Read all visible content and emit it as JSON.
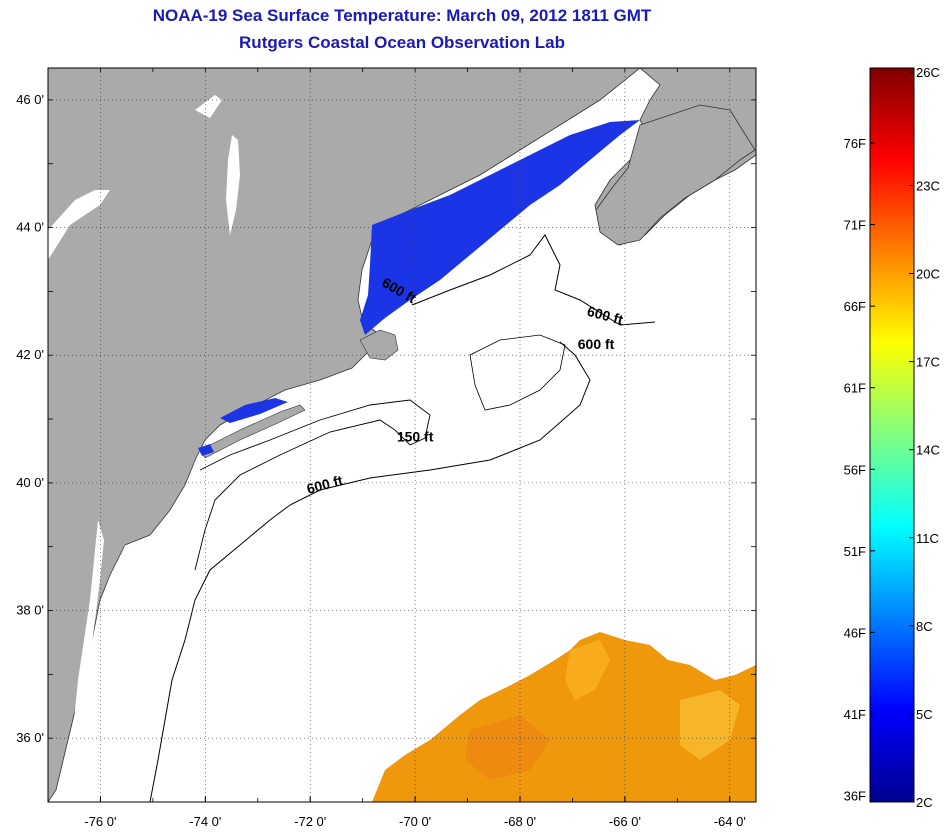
{
  "title": {
    "line1": "NOAA-19 Sea Surface Temperature:  March 09, 2012 1811 GMT",
    "line2": "Rutgers Coastal Ocean Observation Lab"
  },
  "map": {
    "lat_range": [
      35,
      46.5
    ],
    "lon_range": [
      -77,
      -63.5
    ],
    "lat_ticks": [
      {
        "value": 46,
        "label": "46 0'"
      },
      {
        "value": 44,
        "label": "44 0'"
      },
      {
        "value": 42,
        "label": "42 0'"
      },
      {
        "value": 40,
        "label": "40 0'"
      },
      {
        "value": 38,
        "label": "38 0'"
      },
      {
        "value": 36,
        "label": "36 0'"
      }
    ],
    "lon_ticks": [
      {
        "value": -76,
        "label": "-76 0'"
      },
      {
        "value": -74,
        "label": "-74 0'"
      },
      {
        "value": -72,
        "label": "-72 0'"
      },
      {
        "value": -70,
        "label": "-70 0'"
      },
      {
        "value": -68,
        "label": "-68 0'"
      },
      {
        "value": -66,
        "label": "-66 0'"
      },
      {
        "value": -64,
        "label": "-64 0'"
      }
    ],
    "contour_labels": [
      {
        "text": "600 ft",
        "lon": -70.35,
        "lat": 42.95,
        "angle": 30
      },
      {
        "text": "600 ft",
        "lon": -66.4,
        "lat": 42.55,
        "angle": 15
      },
      {
        "text": "600 ft",
        "lon": -66.55,
        "lat": 42.1,
        "angle": 0
      },
      {
        "text": "150 ft",
        "lon": -70.0,
        "lat": 40.65,
        "angle": 0
      },
      {
        "text": "600 ft",
        "lon": -71.7,
        "lat": 39.9,
        "angle": -15
      }
    ],
    "colors": {
      "land": "#aaaaaa",
      "ocean_nodata": "#ffffff",
      "warm_sst": "#f0980c",
      "cold_sst": "#1b35e6",
      "title": "#1a1ab4"
    }
  },
  "colorbar": {
    "celsius_ticks": [
      {
        "value": 26,
        "label": "26C"
      },
      {
        "value": 23,
        "label": "23C"
      },
      {
        "value": 20,
        "label": "20C"
      },
      {
        "value": 17,
        "label": "17C"
      },
      {
        "value": 14,
        "label": "14C"
      },
      {
        "value": 11,
        "label": "11C"
      },
      {
        "value": 8,
        "label": "8C"
      },
      {
        "value": 5,
        "label": "5C"
      },
      {
        "value": 2,
        "label": "2C"
      }
    ],
    "fahrenheit_ticks": [
      {
        "value": 76,
        "label": "76F"
      },
      {
        "value": 71,
        "label": "71F"
      },
      {
        "value": 66,
        "label": "66F"
      },
      {
        "value": 61,
        "label": "61F"
      },
      {
        "value": 56,
        "label": "56F"
      },
      {
        "value": 51,
        "label": "51F"
      },
      {
        "value": 46,
        "label": "46F"
      },
      {
        "value": 41,
        "label": "41F"
      },
      {
        "value": 36,
        "label": "36F"
      }
    ],
    "range_c": [
      2,
      27
    ],
    "colors": [
      "#00008f",
      "#0000ff",
      "#0080ff",
      "#00ffff",
      "#80ff80",
      "#ffff00",
      "#ff8000",
      "#ff0000",
      "#800000"
    ]
  }
}
